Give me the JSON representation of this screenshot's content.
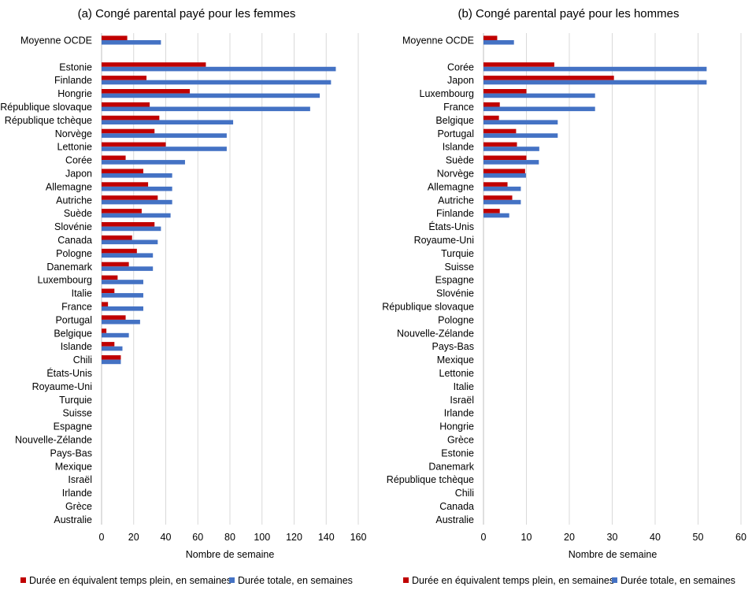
{
  "chart_data": [
    {
      "type": "bar",
      "orientation": "horizontal",
      "title": "(a) Congé parental payé pour les femmes",
      "xlabel": "Nombre de semaine",
      "xlim": [
        0,
        160
      ],
      "xticks": [
        "0",
        "20",
        "40",
        "60",
        "80",
        "100",
        "120",
        "140",
        "160"
      ],
      "categories": [
        "Moyenne OCDE",
        "",
        "Estonie",
        "Finlande",
        "Hongrie",
        "République slovaque",
        "République tchèque",
        "Norvège",
        "Lettonie",
        "Corée",
        "Japon",
        "Allemagne",
        "Autriche",
        "Suède",
        "Slovénie",
        "Canada",
        "Pologne",
        "Danemark",
        "Luxembourg",
        "Italie",
        "France",
        "Portugal",
        "Belgique",
        "Islande",
        "Chili",
        "États-Unis",
        "Royaume-Uni",
        "Turquie",
        "Suisse",
        "Espagne",
        "Nouvelle-Zélande",
        "Pays-Bas",
        "Mexique",
        "Israël",
        "Irlande",
        "Grèce",
        "Australie"
      ],
      "series": [
        {
          "name": "Durée en équivalent temps plein, en semaines",
          "color": "#c00000",
          "values": [
            16,
            null,
            65,
            28,
            55,
            30,
            36,
            33,
            40,
            15,
            26,
            29,
            35,
            25,
            33,
            19,
            22,
            17,
            10,
            8,
            4,
            15,
            3,
            8,
            12,
            0,
            0,
            0,
            0,
            0,
            0,
            0,
            0,
            0,
            0,
            0,
            0
          ]
        },
        {
          "name": "Durée totale, en semaines",
          "color": "#4472c4",
          "values": [
            37,
            null,
            146,
            143,
            136,
            130,
            82,
            78,
            78,
            52,
            44,
            44,
            44,
            43,
            37,
            35,
            32,
            32,
            26,
            26,
            26,
            24,
            17,
            13,
            12,
            0,
            0,
            0,
            0,
            0,
            0,
            0,
            0,
            0,
            0,
            0,
            0
          ]
        }
      ]
    },
    {
      "type": "bar",
      "orientation": "horizontal",
      "title": "(b) Congé parental payé pour les hommes",
      "xlabel": "Nombre de semaine",
      "xlim": [
        0,
        60
      ],
      "xticks": [
        "0",
        "10",
        "20",
        "30",
        "40",
        "50",
        "60"
      ],
      "categories": [
        "Moyenne OCDE",
        "",
        "Corée",
        "Japon",
        "Luxembourg",
        "France",
        "Belgique",
        "Portugal",
        "Islande",
        "Suède",
        "Norvège",
        "Allemagne",
        "Autriche",
        "Finlande",
        "États-Unis",
        "Royaume-Uni",
        "Turquie",
        "Suisse",
        "Espagne",
        "Slovénie",
        "République slovaque",
        "Pologne",
        "Nouvelle-Zélande",
        "Pays-Bas",
        "Mexique",
        "Lettonie",
        "Italie",
        "Israël",
        "Irlande",
        "Hongrie",
        "Grèce",
        "Estonie",
        "Danemark",
        "République tchèque",
        "Chili",
        "Canada",
        "Australie"
      ],
      "series": [
        {
          "name": "Durée en équivalent temps plein, en semaines",
          "color": "#c00000",
          "values": [
            3.2,
            null,
            16.5,
            30.4,
            10.0,
            3.8,
            3.6,
            7.6,
            7.8,
            10.0,
            9.7,
            5.6,
            6.7,
            3.8,
            0,
            0,
            0,
            0,
            0,
            0,
            0,
            0,
            0,
            0,
            0,
            0,
            0,
            0,
            0,
            0,
            0,
            0,
            0,
            0,
            0,
            0,
            0
          ]
        },
        {
          "name": "Durée totale, en semaines",
          "color": "#4472c4",
          "values": [
            7.1,
            null,
            52,
            52,
            26,
            26,
            17.3,
            17.3,
            13,
            12.9,
            9.9,
            8.7,
            8.7,
            6.0,
            0,
            0,
            0,
            0,
            0,
            0,
            0,
            0,
            0,
            0,
            0,
            0,
            0,
            0,
            0,
            0,
            0,
            0,
            0,
            0,
            0,
            0,
            0
          ]
        }
      ]
    }
  ],
  "legend": {
    "items": [
      {
        "label": "Durée en équivalent temps plein, en semaines",
        "color": "#c00000"
      },
      {
        "label": "Durée totale, en semaines",
        "color": "#4472c4"
      }
    ]
  }
}
